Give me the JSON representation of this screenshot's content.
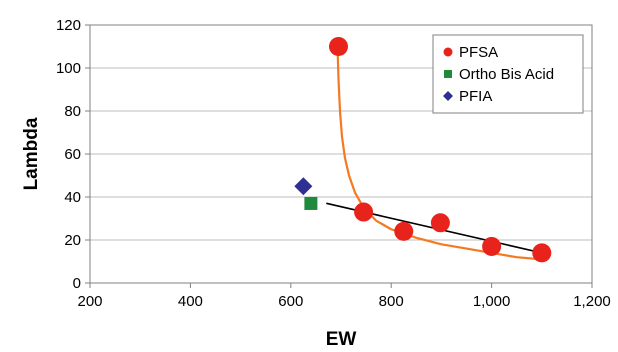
{
  "chart_data": {
    "type": "scatter",
    "xlabel": "EW",
    "ylabel": "Lambda",
    "xlim": [
      200,
      1200
    ],
    "ylim": [
      0,
      120
    ],
    "x_ticks": [
      200,
      400,
      600,
      800,
      1000,
      1200
    ],
    "x_tick_labels": [
      "200",
      "400",
      "600",
      "800",
      "1,000",
      "1,200"
    ],
    "y_ticks": [
      0,
      20,
      40,
      60,
      80,
      100,
      120
    ],
    "y_tick_labels": [
      "0",
      "20",
      "40",
      "60",
      "80",
      "100",
      "120"
    ],
    "grid": "horizontal",
    "legend_position": "top-right",
    "series": [
      {
        "name": "PFSA",
        "marker": "circle",
        "color": "#e8231c",
        "points": [
          {
            "x": 695,
            "y": 110
          },
          {
            "x": 745,
            "y": 33
          },
          {
            "x": 825,
            "y": 24
          },
          {
            "x": 898,
            "y": 28
          },
          {
            "x": 1000,
            "y": 17
          },
          {
            "x": 1100,
            "y": 14
          }
        ]
      },
      {
        "name": "Ortho Bis Acid",
        "marker": "square",
        "color": "#1f8a3c",
        "points": [
          {
            "x": 640,
            "y": 37
          }
        ]
      },
      {
        "name": "PFIA",
        "marker": "diamond",
        "color": "#2e3192",
        "points": [
          {
            "x": 625,
            "y": 45
          }
        ]
      }
    ],
    "curves": [
      {
        "kind": "fitted-curve",
        "color": "#f47920",
        "points": [
          {
            "x": 693,
            "y": 110
          },
          {
            "x": 695,
            "y": 95
          },
          {
            "x": 698,
            "y": 80
          },
          {
            "x": 702,
            "y": 68
          },
          {
            "x": 708,
            "y": 58
          },
          {
            "x": 716,
            "y": 50
          },
          {
            "x": 728,
            "y": 42
          },
          {
            "x": 745,
            "y": 35
          },
          {
            "x": 770,
            "y": 29
          },
          {
            "x": 800,
            "y": 25
          },
          {
            "x": 850,
            "y": 21
          },
          {
            "x": 900,
            "y": 18
          },
          {
            "x": 950,
            "y": 16
          },
          {
            "x": 1000,
            "y": 14
          },
          {
            "x": 1050,
            "y": 12
          },
          {
            "x": 1100,
            "y": 11
          }
        ]
      },
      {
        "kind": "trend-line",
        "color": "#000000",
        "points": [
          {
            "x": 672,
            "y": 37
          },
          {
            "x": 1100,
            "y": 14
          }
        ]
      }
    ]
  }
}
